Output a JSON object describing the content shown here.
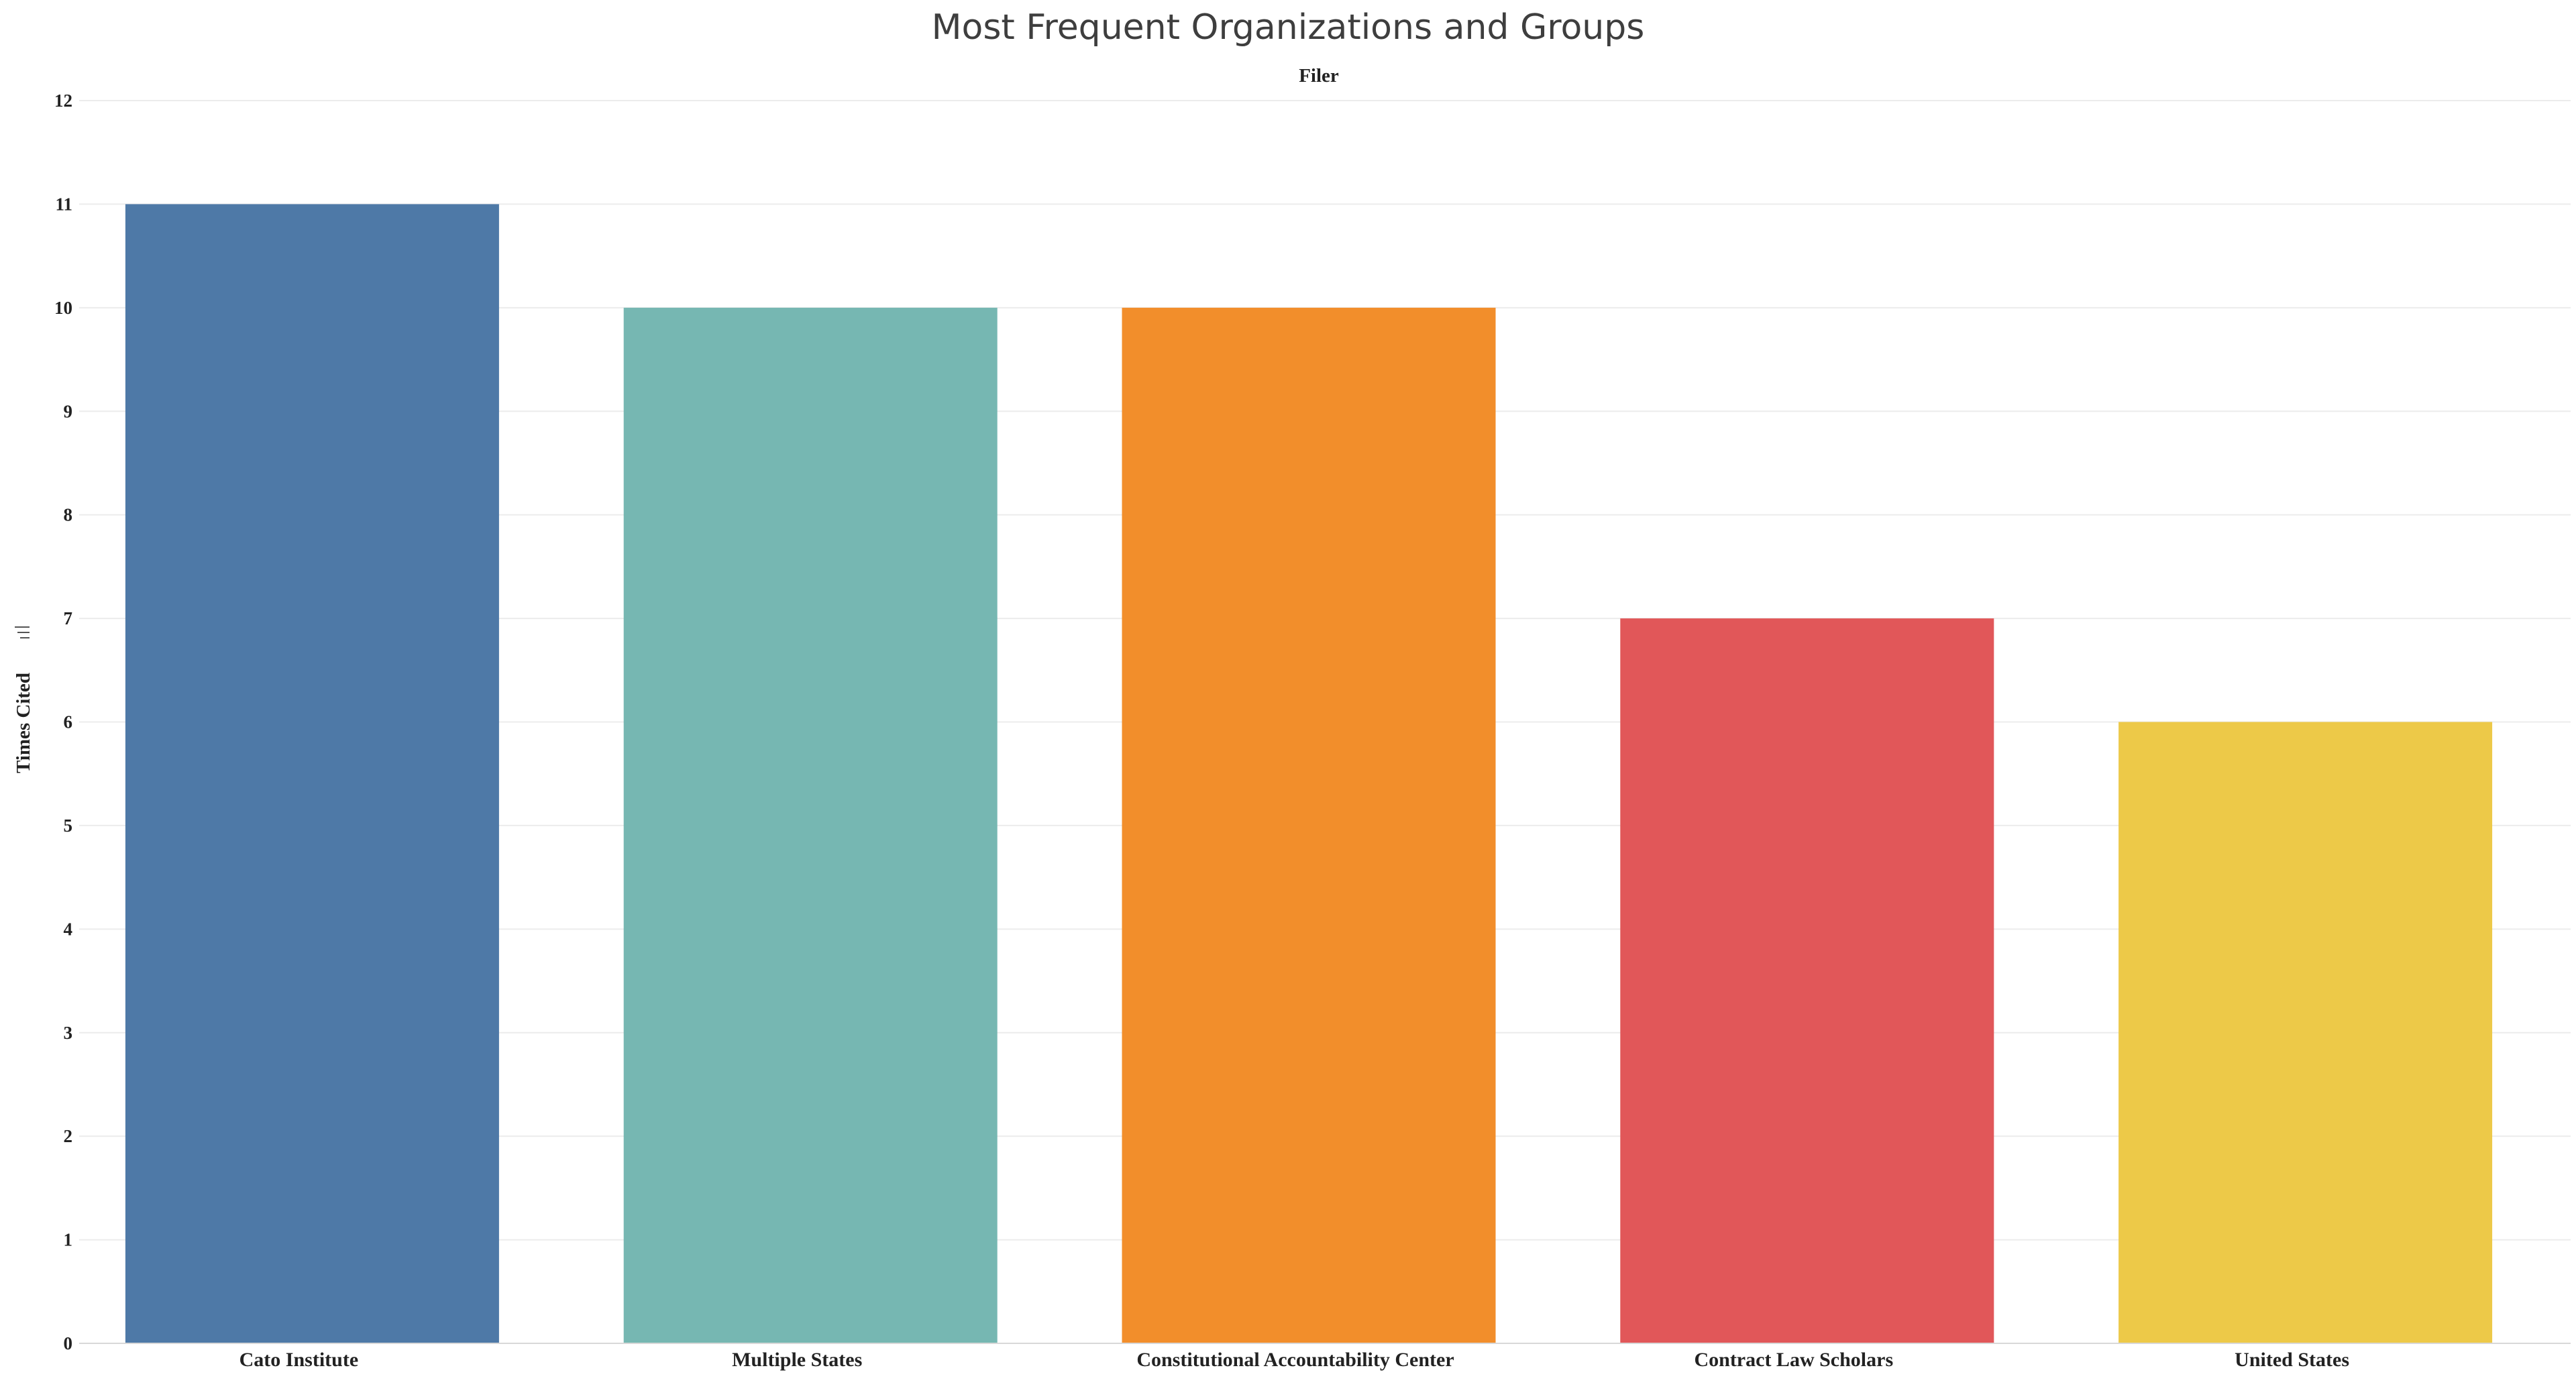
{
  "chart_data": {
    "type": "bar",
    "title": "Most Frequent Organizations and Groups",
    "xlabel": "Filer",
    "ylabel": "Times Cited",
    "categories": [
      "Cato Institute",
      "Multiple States",
      "Constitutional Accountability Center",
      "Contract Law Scholars",
      "United States"
    ],
    "values": [
      11,
      10,
      10,
      7,
      6
    ],
    "colors": [
      "#4e79a7",
      "#76b7b2",
      "#f28e2b",
      "#e15759",
      "#edc948"
    ],
    "ylim": [
      0,
      12
    ],
    "yticks": [
      0,
      1,
      2,
      3,
      4,
      5,
      6,
      7,
      8,
      9,
      10,
      11,
      12
    ],
    "grid": true,
    "legend": "none"
  }
}
